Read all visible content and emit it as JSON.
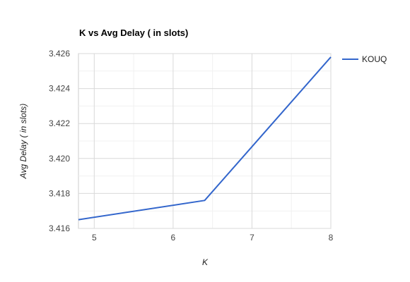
{
  "chart_data": {
    "type": "line",
    "title": "K vs Avg Delay ( in slots)",
    "xlabel": "K",
    "ylabel": "Avg Delay ( in slots)",
    "xlim": [
      4.8,
      8
    ],
    "ylim": [
      3.416,
      3.426
    ],
    "x_ticks": [
      5,
      6,
      7,
      8
    ],
    "y_ticks": [
      3.416,
      3.418,
      3.42,
      3.422,
      3.424,
      3.426
    ],
    "x_tick_labels": [
      "5",
      "6",
      "7",
      "8"
    ],
    "y_tick_labels": [
      "3.416",
      "3.418",
      "3.420",
      "3.422",
      "3.424",
      "3.426"
    ],
    "grid": true,
    "legend_position": "right",
    "series": [
      {
        "name": "KOUQ",
        "color": "#3366cc",
        "x": [
          4.8,
          6.4,
          8
        ],
        "y": [
          3.4165,
          3.4176,
          3.4258
        ]
      }
    ]
  }
}
